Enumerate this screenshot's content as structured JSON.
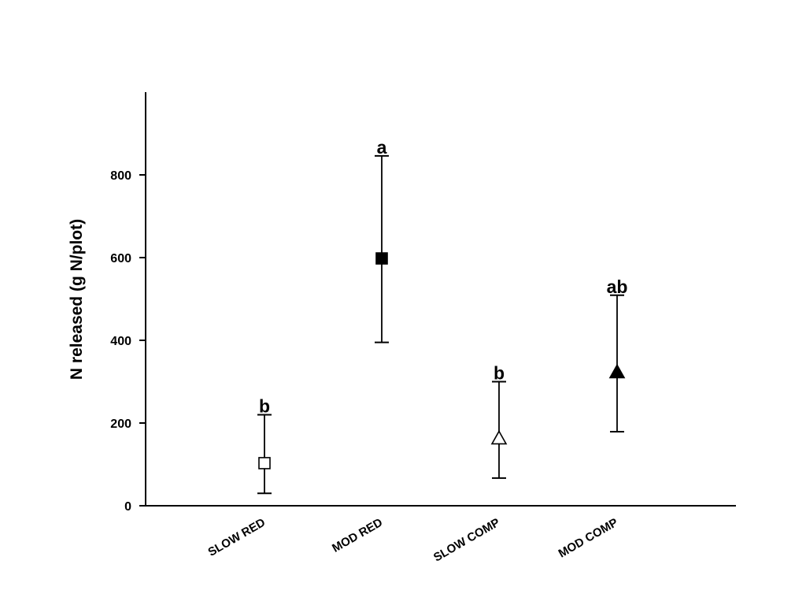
{
  "chart_data": {
    "type": "scatter",
    "title": "",
    "xlabel": "",
    "ylabel": "N released (g N/plot)",
    "ylim": [
      0,
      1000
    ],
    "yticks": [
      0,
      200,
      400,
      600,
      800
    ],
    "grid": false,
    "legend": "none",
    "categories": [
      "SLOW RED",
      "MOD RED",
      "SLOW COMP",
      "MOD COMP"
    ],
    "points": [
      {
        "category": "SLOW RED",
        "value": 103,
        "lower": 30,
        "upper": 220,
        "marker": "square-open",
        "sig": "b"
      },
      {
        "category": "MOD RED",
        "value": 598,
        "lower": 395,
        "upper": 846,
        "marker": "square-filled",
        "sig": "a"
      },
      {
        "category": "SLOW COMP",
        "value": 163,
        "lower": 67,
        "upper": 300,
        "marker": "triangle-open",
        "sig": "b"
      },
      {
        "category": "MOD COMP",
        "value": 323,
        "lower": 179,
        "upper": 509,
        "marker": "triangle-filled",
        "sig": "ab"
      }
    ],
    "colors": {
      "axis": "#000000",
      "marker": "#000000",
      "background": "#ffffff"
    }
  }
}
